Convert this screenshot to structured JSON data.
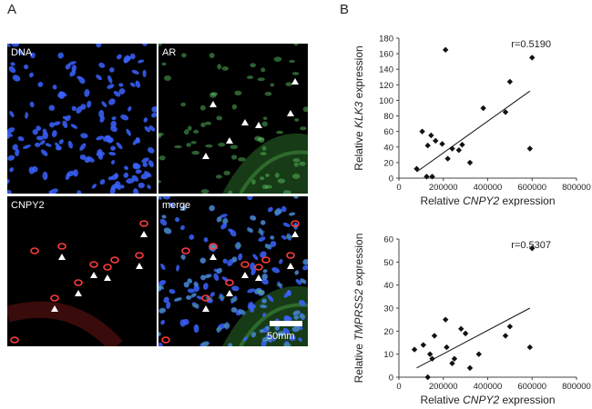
{
  "figure": {
    "panel_a_letter": "A",
    "panel_b_letter": "B",
    "micrographs": [
      {
        "label": "DNA",
        "stain": "blue"
      },
      {
        "label": "AR",
        "stain": "green"
      },
      {
        "label": "CNPY2",
        "stain": "red"
      },
      {
        "label": "merge",
        "stain": "merge"
      }
    ],
    "scale_bar_label": "50mm",
    "stain_colors": {
      "blue": "#3a63ff",
      "green": "#5ac060",
      "red": "#ff3b3b"
    }
  },
  "chart_data": [
    {
      "type": "scatter",
      "title": "",
      "xlabel_prefix": "Relative ",
      "xlabel_gene": "CNPY2",
      "xlabel_suffix": " expression",
      "ylabel_prefix": "Relative ",
      "ylabel_gene": "KLK3",
      "ylabel_suffix": " expression",
      "annotation": "r=0.5190",
      "xlim": [
        0,
        800000
      ],
      "ylim": [
        0,
        180
      ],
      "xticks": [
        0,
        200000,
        400000,
        600000,
        800000
      ],
      "yticks": [
        0,
        20,
        40,
        60,
        80,
        100,
        120,
        140,
        160,
        180
      ],
      "points": [
        [
          80000,
          12
        ],
        [
          105000,
          60
        ],
        [
          125000,
          2
        ],
        [
          130000,
          42
        ],
        [
          145000,
          55
        ],
        [
          150000,
          2
        ],
        [
          165000,
          48
        ],
        [
          195000,
          44
        ],
        [
          210000,
          165
        ],
        [
          220000,
          25
        ],
        [
          240000,
          38
        ],
        [
          270000,
          36
        ],
        [
          285000,
          43
        ],
        [
          320000,
          20
        ],
        [
          380000,
          90
        ],
        [
          480000,
          85
        ],
        [
          500000,
          124
        ],
        [
          590000,
          38
        ],
        [
          600000,
          155
        ]
      ],
      "trendline": [
        [
          80000,
          8
        ],
        [
          590000,
          112
        ]
      ]
    },
    {
      "type": "scatter",
      "title": "",
      "xlabel_prefix": "Relative ",
      "xlabel_gene": "CNPY2",
      "xlabel_suffix": " expression",
      "ylabel_prefix": "Relative ",
      "ylabel_gene": "TMPRSS2",
      "ylabel_suffix": " expression",
      "annotation": "r=0.5307",
      "xlim": [
        0,
        800000
      ],
      "ylim": [
        0,
        60
      ],
      "xticks": [
        0,
        200000,
        400000,
        600000,
        800000
      ],
      "yticks": [
        0,
        10,
        20,
        30,
        40,
        50,
        60
      ],
      "points": [
        [
          70000,
          12
        ],
        [
          110000,
          14
        ],
        [
          130000,
          0
        ],
        [
          140000,
          10
        ],
        [
          150000,
          8
        ],
        [
          160000,
          18
        ],
        [
          210000,
          25
        ],
        [
          215000,
          13
        ],
        [
          240000,
          6
        ],
        [
          250000,
          8
        ],
        [
          280000,
          21
        ],
        [
          300000,
          19
        ],
        [
          320000,
          4
        ],
        [
          360000,
          10
        ],
        [
          480000,
          18
        ],
        [
          500000,
          22
        ],
        [
          590000,
          13
        ],
        [
          600000,
          56
        ]
      ],
      "trendline": [
        [
          80000,
          4
        ],
        [
          590000,
          30
        ]
      ]
    }
  ]
}
